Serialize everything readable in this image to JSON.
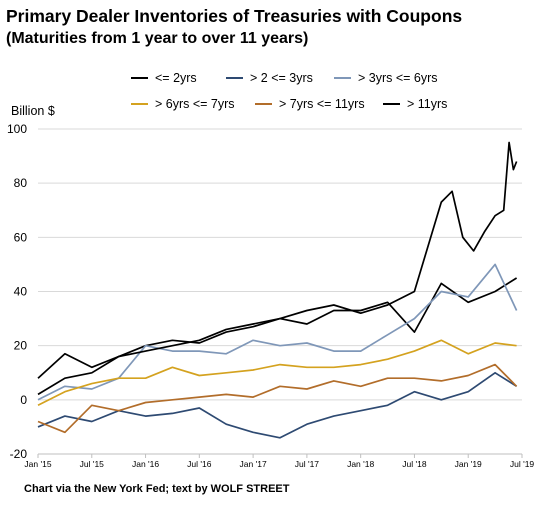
{
  "chart_data": {
    "type": "line",
    "title": "Primary Dealer Inventories of Treasuries with Coupons",
    "subtitle": "(Maturities from 1 year to over 11 years)",
    "ylabel": "Billion $",
    "source": "Chart via  the New York Fed; text by WOLF STREET",
    "ylim": [
      -20,
      100
    ],
    "yticks": [
      -20,
      0,
      20,
      40,
      60,
      80,
      100
    ],
    "xlim": [
      2015.0,
      2019.5
    ],
    "xticks": [
      {
        "label": "Jan '15",
        "x": 2015.0
      },
      {
        "label": "Jul '15",
        "x": 2015.5
      },
      {
        "label": "Jan '16",
        "x": 2016.0
      },
      {
        "label": "Jul '16",
        "x": 2016.5
      },
      {
        "label": "Jan '17",
        "x": 2017.0
      },
      {
        "label": "Jul '17",
        "x": 2017.5
      },
      {
        "label": "Jan '18",
        "x": 2018.0
      },
      {
        "label": "Jul '18",
        "x": 2018.5
      },
      {
        "label": "Jan '19",
        "x": 2019.0
      },
      {
        "label": "Jul '19",
        "x": 2019.5
      }
    ],
    "grid": true,
    "legend_position": "top",
    "series": [
      {
        "name": "<= 2yrs",
        "color": "#000000",
        "x": [
          2015.0,
          2015.25,
          2015.5,
          2015.75,
          2016.0,
          2016.25,
          2016.5,
          2016.75,
          2017.0,
          2017.25,
          2017.5,
          2017.75,
          2018.0,
          2018.25,
          2018.5,
          2018.75,
          2019.0,
          2019.25,
          2019.45
        ],
        "y": [
          8,
          17,
          12,
          16,
          20,
          22,
          21,
          25,
          27,
          30,
          28,
          33,
          33,
          36,
          25,
          43,
          36,
          40,
          45
        ]
      },
      {
        "name": "> 2 <= 3yrs",
        "color": "#2e4a72",
        "x": [
          2015.0,
          2015.25,
          2015.5,
          2015.75,
          2016.0,
          2016.25,
          2016.5,
          2016.75,
          2017.0,
          2017.25,
          2017.5,
          2017.75,
          2018.0,
          2018.25,
          2018.5,
          2018.75,
          2019.0,
          2019.25,
          2019.45
        ],
        "y": [
          -10,
          -6,
          -8,
          -4,
          -6,
          -5,
          -3,
          -9,
          -12,
          -14,
          -9,
          -6,
          -4,
          -2,
          3,
          0,
          3,
          10,
          5
        ]
      },
      {
        "name": "> 3yrs <= 6yrs",
        "color": "#7f97b8",
        "x": [
          2015.0,
          2015.25,
          2015.5,
          2015.75,
          2016.0,
          2016.25,
          2016.5,
          2016.75,
          2017.0,
          2017.25,
          2017.5,
          2017.75,
          2018.0,
          2018.25,
          2018.5,
          2018.75,
          2019.0,
          2019.25,
          2019.45
        ],
        "y": [
          0,
          5,
          4,
          8,
          20,
          18,
          18,
          17,
          22,
          20,
          21,
          18,
          18,
          24,
          30,
          40,
          38,
          50,
          33
        ]
      },
      {
        "name": "> 6yrs <= 7yrs",
        "color": "#d4a21f",
        "x": [
          2015.0,
          2015.25,
          2015.5,
          2015.75,
          2016.0,
          2016.25,
          2016.5,
          2016.75,
          2017.0,
          2017.25,
          2017.5,
          2017.75,
          2018.0,
          2018.25,
          2018.5,
          2018.75,
          2019.0,
          2019.25,
          2019.45
        ],
        "y": [
          -2,
          3,
          6,
          8,
          8,
          12,
          9,
          10,
          11,
          13,
          12,
          12,
          13,
          15,
          18,
          22,
          17,
          21,
          20
        ]
      },
      {
        "name": "> 7yrs <= 11yrs",
        "color": "#b26d2a",
        "x": [
          2015.0,
          2015.25,
          2015.5,
          2015.75,
          2016.0,
          2016.25,
          2016.5,
          2016.75,
          2017.0,
          2017.25,
          2017.5,
          2017.75,
          2018.0,
          2018.25,
          2018.5,
          2018.75,
          2019.0,
          2019.25,
          2019.45
        ],
        "y": [
          -8,
          -12,
          -2,
          -4,
          -1,
          0,
          1,
          2,
          1,
          5,
          4,
          7,
          5,
          8,
          8,
          7,
          9,
          13,
          5
        ]
      },
      {
        "name": "> 11yrs",
        "color": "#000000",
        "x": [
          2015.0,
          2015.25,
          2015.5,
          2015.75,
          2016.0,
          2016.25,
          2016.5,
          2016.75,
          2017.0,
          2017.25,
          2017.5,
          2017.75,
          2018.0,
          2018.25,
          2018.5,
          2018.75,
          2018.85,
          2018.95,
          2019.05,
          2019.15,
          2019.25,
          2019.33,
          2019.38,
          2019.42,
          2019.45
        ],
        "y": [
          2,
          8,
          10,
          16,
          18,
          20,
          22,
          26,
          28,
          30,
          33,
          35,
          32,
          35,
          40,
          73,
          77,
          60,
          55,
          62,
          68,
          70,
          95,
          85,
          88
        ]
      }
    ]
  }
}
